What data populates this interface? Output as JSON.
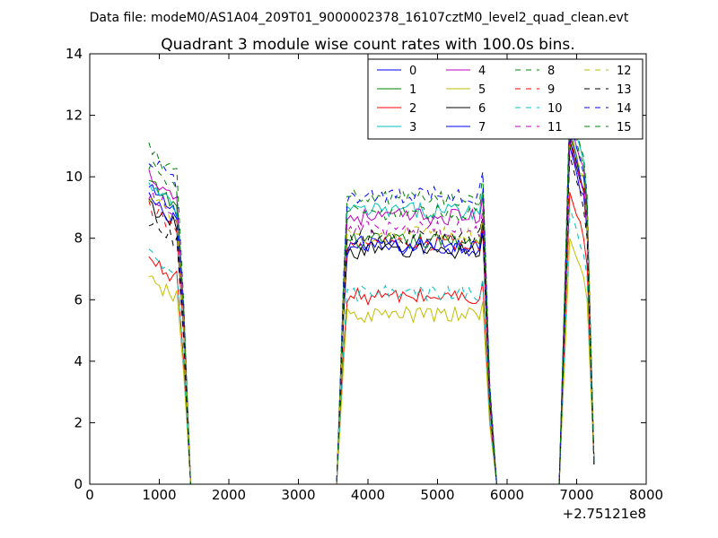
{
  "suptitle": "Data file: modeM0/AS1A04_209T01_9000002378_16107cztM0_level2_quad_clean.evt",
  "chart_data": {
    "type": "line",
    "title": "Quadrant 3 module wise count rates with 100.0s bins.",
    "xlabel": "",
    "ylabel": "",
    "x_offset_label": "+2.75121e8",
    "xlim": [
      0,
      8000
    ],
    "ylim": [
      0,
      14
    ],
    "xticks": [
      0,
      1000,
      2000,
      3000,
      4000,
      5000,
      6000,
      7000,
      8000
    ],
    "yticks": [
      0,
      2,
      4,
      6,
      8,
      10,
      12,
      14
    ],
    "grid": false,
    "legend_position": "top-right",
    "legend_columns": 4,
    "series": [
      {
        "name": "0",
        "color": "#0000ff",
        "dash": "solid",
        "base": [
          9.6,
          7.7,
          11.0
        ]
      },
      {
        "name": "1",
        "color": "#008000",
        "dash": "solid",
        "base": [
          9.8,
          7.9,
          11.6
        ]
      },
      {
        "name": "2",
        "color": "#ff0000",
        "dash": "solid",
        "base": [
          7.3,
          6.1,
          9.5
        ]
      },
      {
        "name": "3",
        "color": "#00bfbf",
        "dash": "solid",
        "base": [
          9.7,
          8.9,
          12.3
        ]
      },
      {
        "name": "4",
        "color": "#bf00bf",
        "dash": "solid",
        "base": [
          10.1,
          8.7,
          11.9
        ]
      },
      {
        "name": "5",
        "color": "#bfbf00",
        "dash": "solid",
        "base": [
          6.6,
          5.5,
          8.0
        ]
      },
      {
        "name": "6",
        "color": "#000000",
        "dash": "solid",
        "base": [
          9.1,
          7.6,
          11.2
        ]
      },
      {
        "name": "7",
        "color": "#0000ff",
        "dash": "solid",
        "base": [
          9.3,
          7.8,
          11.4
        ]
      },
      {
        "name": "8",
        "color": "#008000",
        "dash": "dashed",
        "base": [
          10.9,
          9.3,
          12.6
        ]
      },
      {
        "name": "9",
        "color": "#ff0000",
        "dash": "dashed",
        "base": [
          9.0,
          7.8,
          11.3
        ]
      },
      {
        "name": "10",
        "color": "#00bfbf",
        "dash": "dashed",
        "base": [
          7.4,
          6.2,
          9.0
        ]
      },
      {
        "name": "11",
        "color": "#bf00bf",
        "dash": "dashed",
        "base": [
          9.5,
          8.3,
          11.1
        ]
      },
      {
        "name": "12",
        "color": "#bfbf00",
        "dash": "dashed",
        "base": [
          9.4,
          8.1,
          11.5
        ]
      },
      {
        "name": "13",
        "color": "#000000",
        "dash": "dashed",
        "base": [
          8.6,
          8.0,
          10.7
        ]
      },
      {
        "name": "14",
        "color": "#0000ff",
        "dash": "dashed",
        "base": [
          10.6,
          9.4,
          11.9
        ]
      },
      {
        "name": "15",
        "color": "#008000",
        "dash": "dashed",
        "base": [
          10.4,
          8.8,
          12.1
        ]
      }
    ]
  }
}
